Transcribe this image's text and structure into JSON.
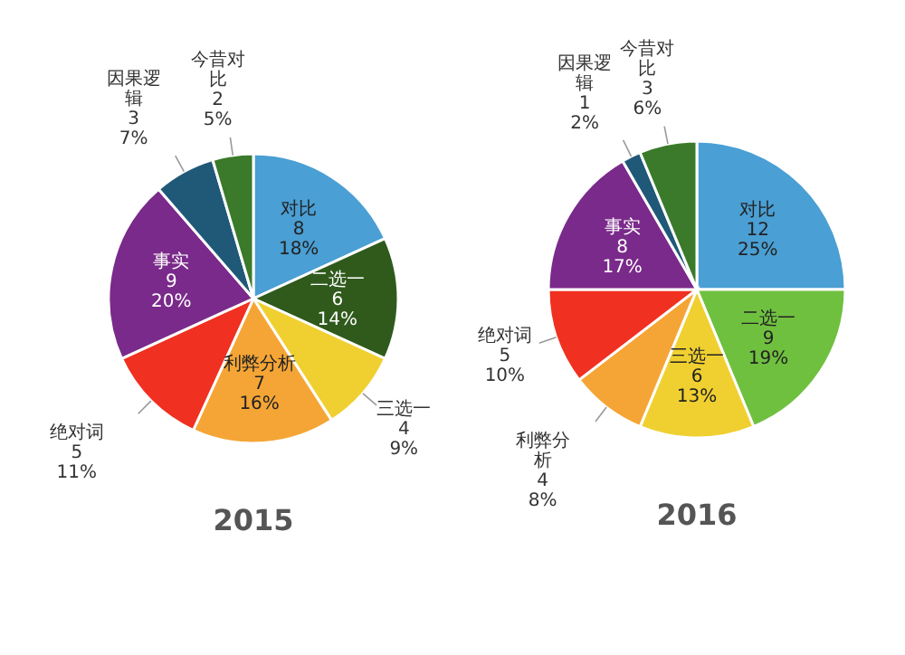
{
  "chart_data": [
    {
      "type": "pie",
      "title": "2015",
      "categories": [
        "对比",
        "二选一",
        "三选一",
        "利弊分析",
        "绝对词",
        "事实",
        "因果逻辑",
        "今昔对比"
      ],
      "values": [
        8,
        6,
        4,
        7,
        5,
        9,
        3,
        2
      ],
      "data_labels": true,
      "annotations": [
        "18%",
        "14%",
        "9%",
        "16%",
        "11%",
        "20%",
        "7%",
        "5%"
      ],
      "colors": [
        "#4a9fd4",
        "#2f5a1c",
        "#f0d030",
        "#f5a535",
        "#f03020",
        "#7a2a8a",
        "#205878",
        "#3a7a2a"
      ]
    },
    {
      "type": "pie",
      "title": "2016",
      "categories": [
        "对比",
        "二选一",
        "三选一",
        "利弊分析",
        "绝对词",
        "事实",
        "因果逻辑",
        "今昔对比"
      ],
      "values": [
        12,
        9,
        6,
        4,
        5,
        8,
        1,
        3
      ],
      "data_labels": true,
      "annotations": [
        "25%",
        "19%",
        "13%",
        "8%",
        "10%",
        "17%",
        "2%",
        "6%"
      ],
      "colors": [
        "#4a9fd4",
        "#70c040",
        "#f0d030",
        "#f5a535",
        "#f03020",
        "#7a2a8a",
        "#205878",
        "#3a7a2a"
      ]
    }
  ]
}
